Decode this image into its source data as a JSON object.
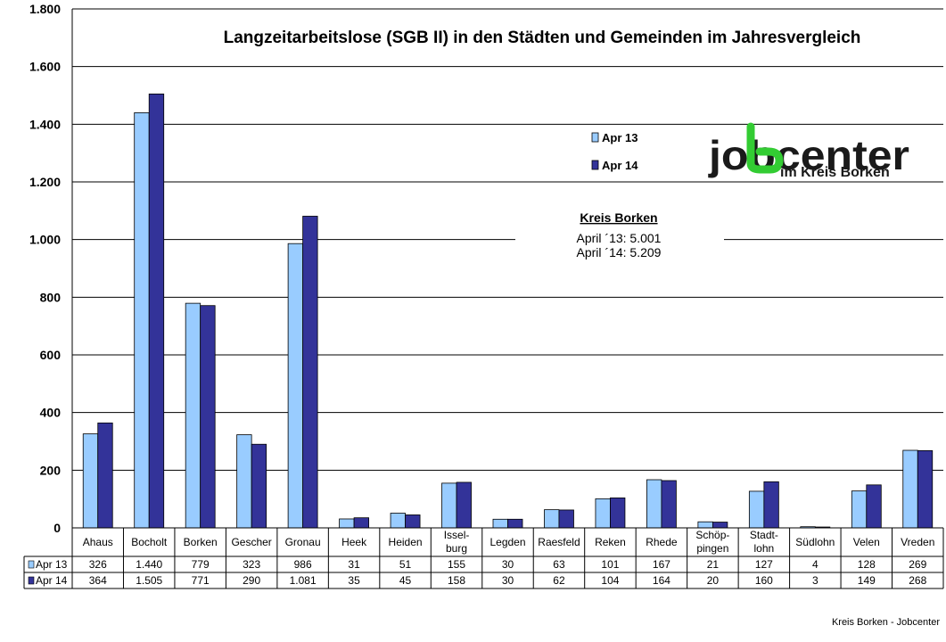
{
  "chart_data": {
    "type": "bar",
    "title": "Langzeitarbeitslose (SGB II) in den Städten und Gemeinden im Jahresvergleich",
    "categories": [
      "Ahaus",
      "Bocholt",
      "Borken",
      "Gescher",
      "Gronau",
      "Heek",
      "Heiden",
      "Issel-burg",
      "Legden",
      "Raesfeld",
      "Reken",
      "Rhede",
      "Schöp-pingen",
      "Stadt-lohn",
      "Südlohn",
      "Velen",
      "Vreden"
    ],
    "category_lines": [
      [
        "Ahaus"
      ],
      [
        "Bocholt"
      ],
      [
        "Borken"
      ],
      [
        "Gescher"
      ],
      [
        "Gronau"
      ],
      [
        "Heek"
      ],
      [
        "Heiden"
      ],
      [
        "Issel-",
        "burg"
      ],
      [
        "Legden"
      ],
      [
        "Raesfeld"
      ],
      [
        "Reken"
      ],
      [
        "Rhede"
      ],
      [
        "Schöp-",
        "pingen"
      ],
      [
        "Stadt-",
        "lohn"
      ],
      [
        "Südlohn"
      ],
      [
        "Velen"
      ],
      [
        "Vreden"
      ]
    ],
    "series": [
      {
        "name": "Apr 13",
        "color": "#99CCFF",
        "values": [
          326,
          1440,
          779,
          323,
          986,
          31,
          51,
          155,
          30,
          63,
          101,
          167,
          21,
          127,
          4,
          128,
          269
        ],
        "labels": [
          "326",
          "1.440",
          "779",
          "323",
          "986",
          "31",
          "51",
          "155",
          "30",
          "63",
          "101",
          "167",
          "21",
          "127",
          "4",
          "128",
          "269"
        ]
      },
      {
        "name": "Apr 14",
        "color": "#333399",
        "values": [
          364,
          1505,
          771,
          290,
          1081,
          35,
          45,
          158,
          30,
          62,
          104,
          164,
          20,
          160,
          3,
          149,
          268
        ],
        "labels": [
          "364",
          "1.505",
          "771",
          "290",
          "1.081",
          "35",
          "45",
          "158",
          "30",
          "62",
          "104",
          "164",
          "20",
          "160",
          "3",
          "149",
          "268"
        ]
      }
    ],
    "ylim": [
      0,
      1800
    ],
    "yticks": [
      0,
      200,
      400,
      600,
      800,
      1000,
      1200,
      1400,
      1600,
      1800
    ],
    "ytick_labels": [
      "0",
      "200",
      "400",
      "600",
      "800",
      "1.000",
      "1.200",
      "1.400",
      "1.600",
      "1.800"
    ],
    "grid": true,
    "legend_position": "top-right",
    "data_table": true
  },
  "annotation": {
    "title": "Kreis Borken",
    "line1": "April ´13: 5.001",
    "line2": "April ´14: 5.209"
  },
  "logo": {
    "main": "jobcenter",
    "sub": "im Kreis Borken"
  },
  "footer": "Kreis Borken - Jobcenter"
}
